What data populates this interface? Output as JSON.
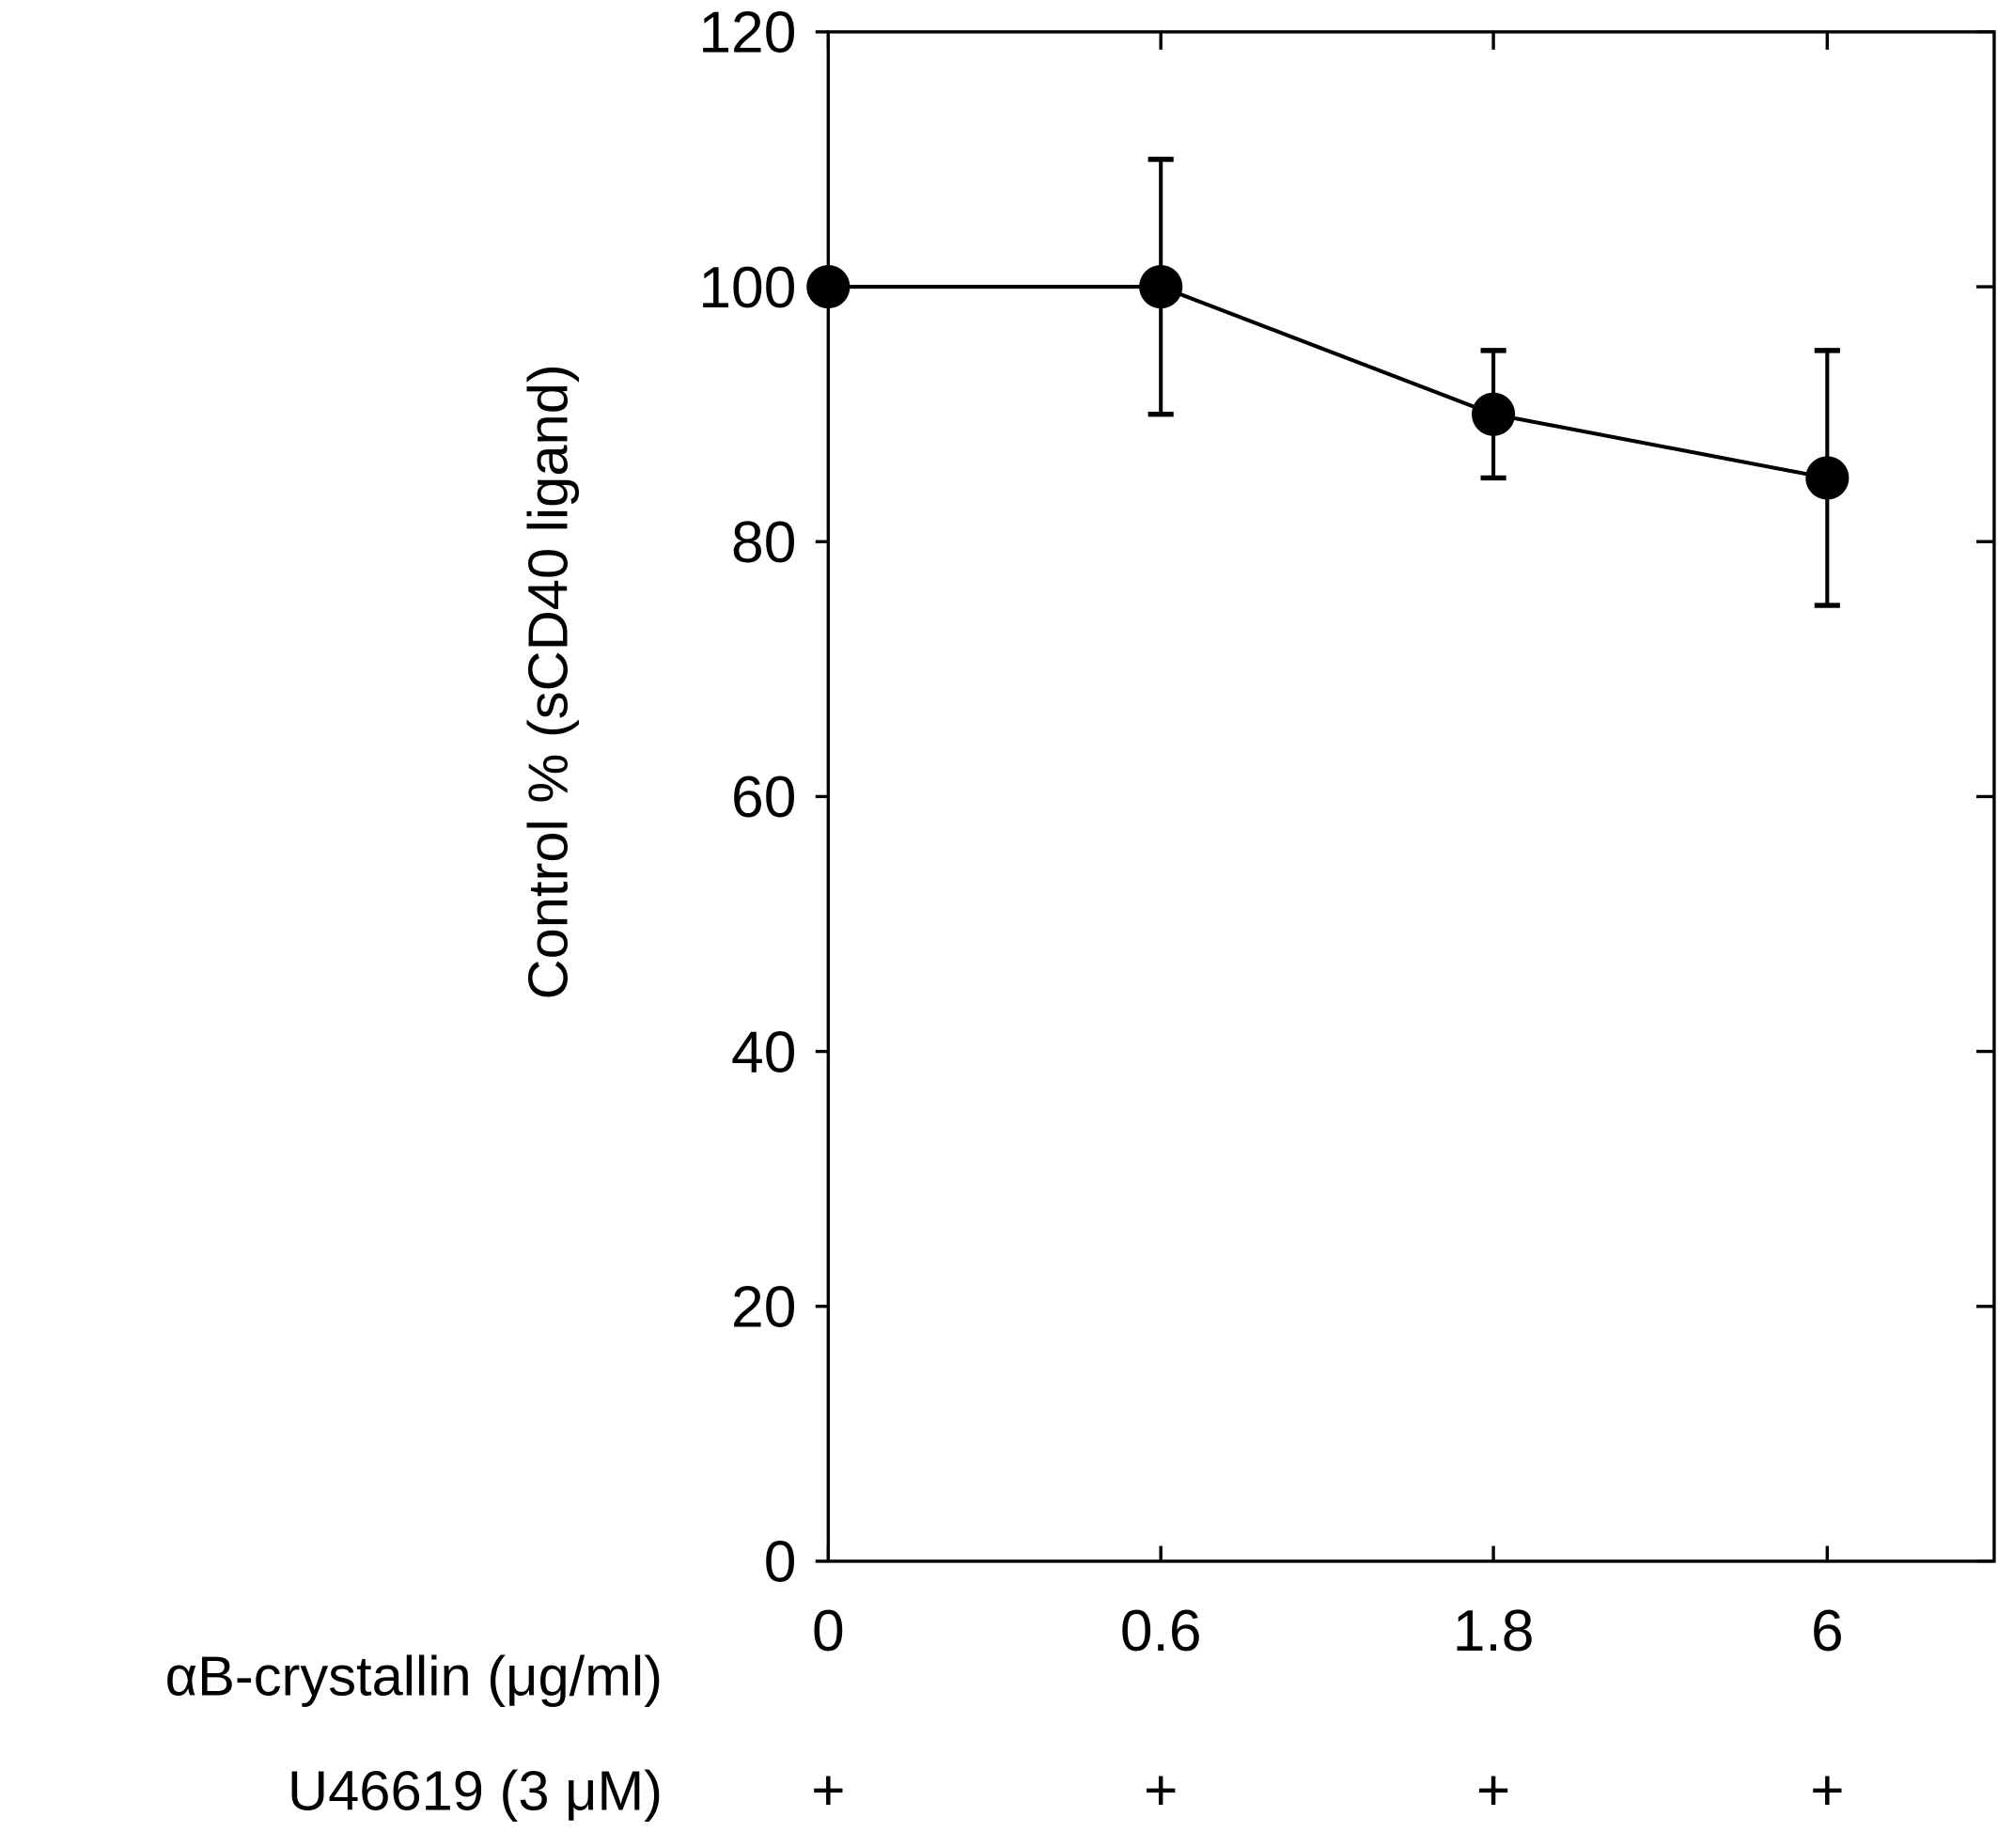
{
  "chart_data": {
    "type": "line",
    "title": "",
    "xlabel": "αB-crystallin (μg/ml)",
    "ylabel": "Control %  (sCD40 ligand)",
    "categories": [
      "0",
      "0.6",
      "1.8",
      "6"
    ],
    "series": [
      {
        "name": "sCD40 ligand",
        "values": [
          100,
          100,
          90,
          85
        ],
        "error": [
          0,
          10,
          5,
          10
        ],
        "color": "#000000",
        "marker": "filled-circle"
      }
    ],
    "ylim": [
      0,
      120
    ],
    "yticks": [
      "0",
      "20",
      "40",
      "60",
      "80",
      "100",
      "120"
    ],
    "grid": false,
    "extra_row": {
      "label": "U46619 (3 μM)",
      "values": [
        "+",
        "+",
        "+",
        "+"
      ]
    }
  }
}
